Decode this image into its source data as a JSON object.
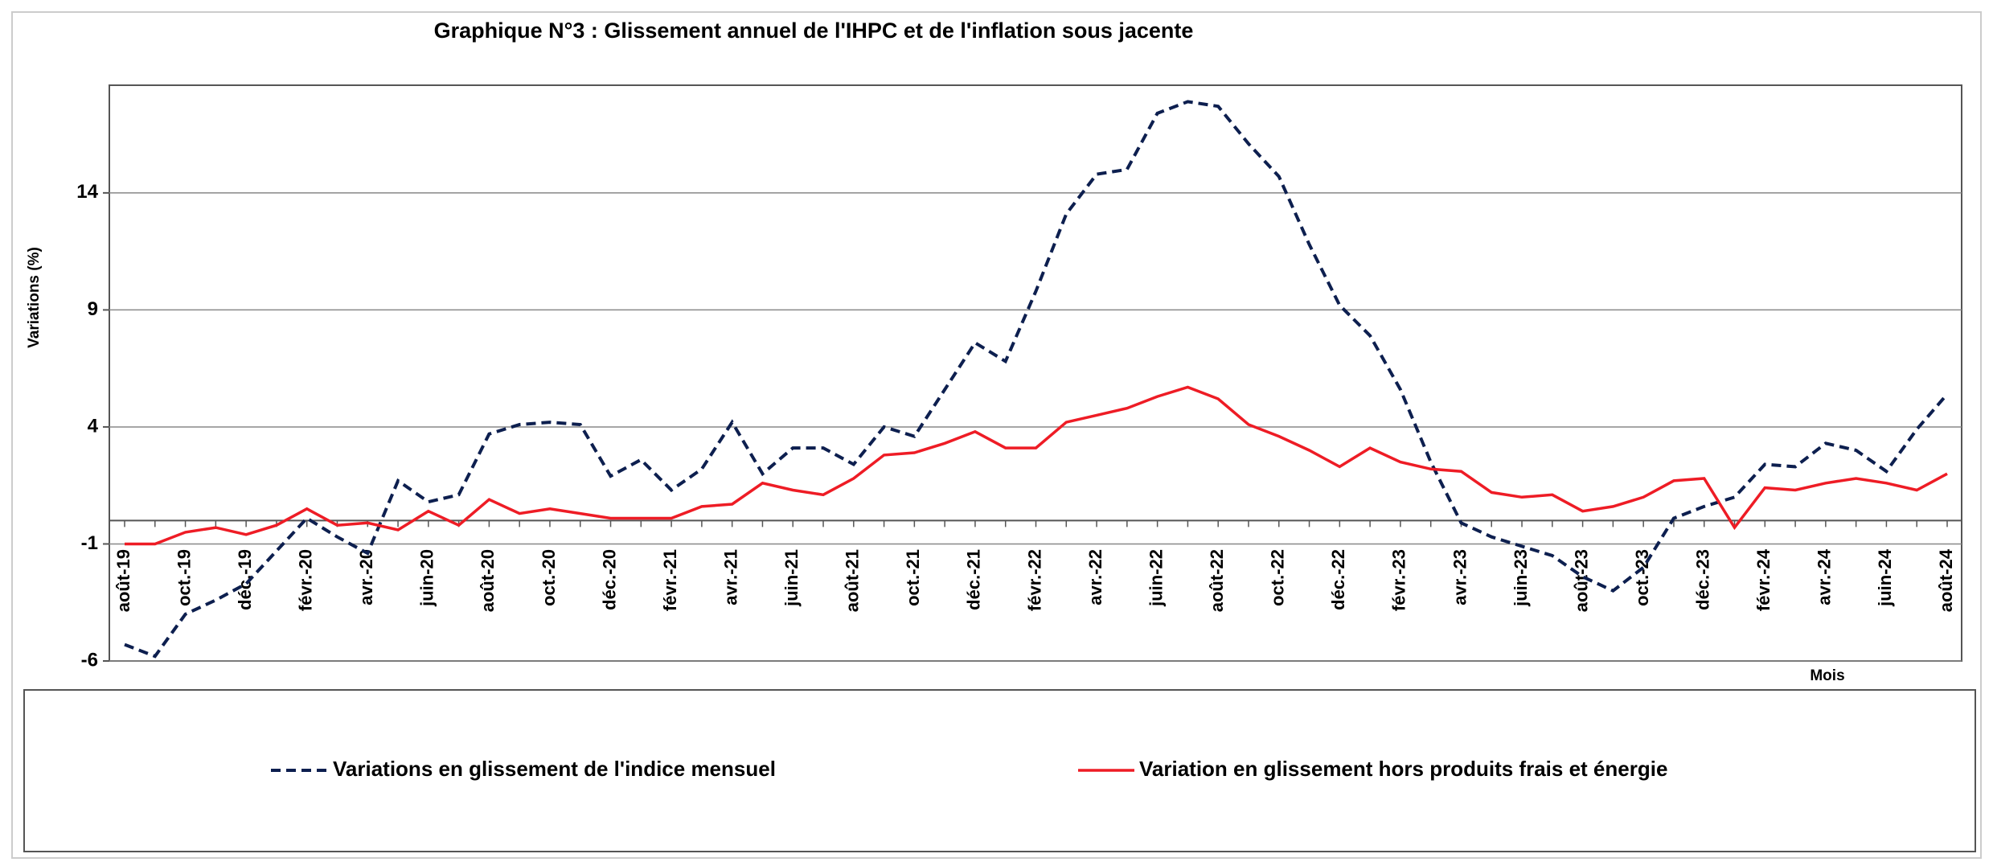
{
  "chart_data": {
    "type": "line",
    "title": "Graphique N°3 : Glissement annuel de l'IHPC et de l'inflation sous jacente",
    "y_label": "Variations (%)",
    "x_label": "Mois",
    "categories": [
      "août-19",
      null,
      "oct.-19",
      null,
      "déc.-19",
      null,
      "févr.-20",
      null,
      "avr.-20",
      null,
      "juin-20",
      null,
      "août-20",
      null,
      "oct.-20",
      null,
      "déc.-20",
      null,
      "févr.-21",
      null,
      "avr.-21",
      null,
      "juin-21",
      null,
      "août-21",
      null,
      "oct.-21",
      null,
      "déc.-21",
      null,
      "févr.-22",
      null,
      "avr.-22",
      null,
      "juin-22",
      null,
      "août-22",
      null,
      "oct.-22",
      null,
      "déc.-22",
      null,
      "févr.-23",
      null,
      "avr.-23",
      null,
      "juin-23",
      null,
      "août-23",
      null,
      "oct.-23",
      null,
      "déc.-23",
      null,
      "févr.-24",
      null,
      "avr.-24",
      null,
      "juin-24",
      null,
      "août-24"
    ],
    "series": [
      {
        "name": "Variations en glissement de l'indice mensuel",
        "color": "#0d1f4f",
        "dashed": true,
        "values": [
          -5.3,
          -5.8,
          -4.0,
          -3.4,
          -2.7,
          -1.3,
          0.1,
          -0.7,
          -1.4,
          1.7,
          0.8,
          1.1,
          3.7,
          4.1,
          4.2,
          4.1,
          1.9,
          2.6,
          1.3,
          2.2,
          4.2,
          2.0,
          3.1,
          3.1,
          2.4,
          4.0,
          3.6,
          5.6,
          7.6,
          6.8,
          9.8,
          13.1,
          14.8,
          15.0,
          17.4,
          17.9,
          17.7,
          16.1,
          14.7,
          11.8,
          9.2,
          7.9,
          5.6,
          2.5,
          -0.1,
          -0.7,
          -1.1,
          -1.5,
          -2.4,
          -3.0,
          -2.0,
          0.1,
          0.6,
          1.0,
          2.4,
          2.3,
          3.3,
          3.0,
          2.1,
          3.9,
          5.4
        ]
      },
      {
        "name": "Variation en glissement hors produits frais et énergie",
        "color": "#ee1c25",
        "dashed": false,
        "values": [
          -1.0,
          -1.0,
          -0.5,
          -0.3,
          -0.6,
          -0.2,
          0.5,
          -0.2,
          -0.1,
          -0.4,
          0.4,
          -0.2,
          0.9,
          0.3,
          0.5,
          0.3,
          0.1,
          0.1,
          0.1,
          0.6,
          0.7,
          1.6,
          1.3,
          1.1,
          1.8,
          2.8,
          2.9,
          3.3,
          3.8,
          3.1,
          3.1,
          4.2,
          4.5,
          4.8,
          5.3,
          5.7,
          5.2,
          4.1,
          3.6,
          3.0,
          2.3,
          3.1,
          2.5,
          2.2,
          2.1,
          1.2,
          1.0,
          1.1,
          0.4,
          0.6,
          1.0,
          1.7,
          1.8,
          -0.3,
          1.4,
          1.3,
          1.6,
          1.8,
          1.6,
          1.3,
          2.0
        ]
      }
    ],
    "ylim": [
      -6,
      18.6
    ],
    "yticks": [
      -6,
      -1,
      4,
      9,
      14
    ],
    "grid": true
  }
}
